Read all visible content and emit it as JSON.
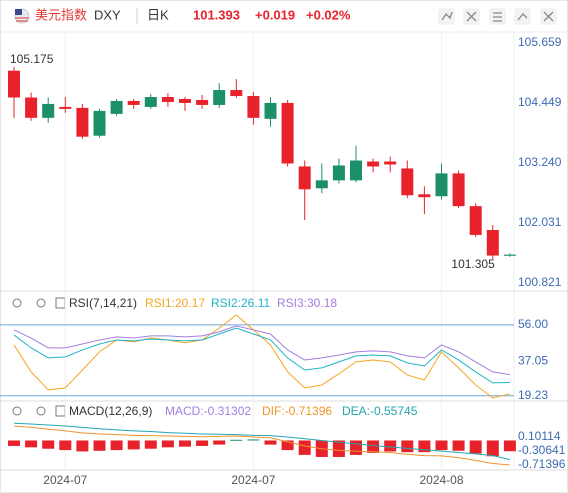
{
  "header": {
    "name": "美元指数",
    "symbol": "DXY",
    "period": "日K",
    "change": "+0.019",
    "change_pct": "+0.02%"
  },
  "chart_data": [
    {
      "type": "candlestick",
      "categories": [
        null,
        null,
        null,
        "2024-07",
        null,
        null,
        null,
        null,
        null,
        null,
        null,
        null,
        null,
        null,
        "2024-07",
        null,
        null,
        null,
        null,
        null,
        null,
        null,
        null,
        null,
        null,
        "2024-08",
        null,
        null,
        null,
        null
      ],
      "open": [
        105.1,
        104.56,
        104.15,
        104.37,
        104.35,
        103.79,
        104.23,
        104.49,
        104.37,
        104.57,
        104.53,
        104.51,
        104.41,
        104.71,
        104.59,
        104.13,
        104.45,
        103.17,
        102.73,
        102.89,
        102.89,
        103.27,
        103.27,
        103.13,
        102.61,
        102.57,
        103.03,
        102.37,
        101.89,
        101.37
      ],
      "high": [
        105.175,
        104.66,
        104.56,
        104.57,
        104.43,
        104.33,
        104.53,
        104.53,
        104.63,
        104.65,
        104.57,
        104.61,
        104.85,
        104.93,
        104.67,
        104.57,
        104.51,
        103.29,
        103.23,
        103.33,
        103.59,
        103.33,
        103.37,
        103.29,
        102.77,
        103.23,
        103.09,
        102.43,
        101.99,
        101.42
      ],
      "low": [
        104.15,
        104.09,
        104.05,
        104.25,
        103.73,
        103.75,
        104.19,
        104.33,
        104.33,
        104.37,
        104.29,
        104.33,
        104.35,
        104.55,
        104.01,
        103.97,
        103.17,
        102.09,
        102.63,
        102.83,
        102.85,
        103.05,
        103.05,
        102.53,
        102.21,
        102.51,
        102.33,
        101.75,
        101.305,
        101.35
      ],
      "close": [
        104.56,
        104.15,
        104.43,
        104.33,
        103.77,
        104.29,
        104.49,
        104.41,
        104.57,
        104.47,
        104.45,
        104.41,
        104.71,
        104.59,
        104.15,
        104.45,
        103.23,
        102.71,
        102.89,
        103.19,
        103.29,
        103.17,
        103.21,
        102.59,
        102.55,
        103.03,
        102.37,
        101.79,
        101.374,
        101.393
      ],
      "up_color": "#1a8f68",
      "down_color": "#e8222b",
      "ylim": [
        100.68,
        105.86
      ],
      "yticks": [
        105.659,
        104.449,
        {
          "value": 103.24,
          "label": "103.240"
        },
        102.031,
        100.821
      ]
    },
    {
      "type": "line",
      "title": "RSI(7,14,21)",
      "series": [
        {
          "name": "RSI1:20.17",
          "color": "#f5a623",
          "values": [
            45.6,
            31.6,
            22.3,
            23.3,
            32.6,
            42,
            48.2,
            47.2,
            49.2,
            48.2,
            46.7,
            48.2,
            54.4,
            61.2,
            53.4,
            45.6,
            31.6,
            23.3,
            24.8,
            30.6,
            36.8,
            37.8,
            36.8,
            30,
            27.4,
            42,
            33.7,
            24.8,
            18.1,
            20.17
          ]
        },
        {
          "name": "RSI2:26.11",
          "color": "#1fb5c9",
          "values": [
            50.8,
            44.1,
            38.9,
            39.4,
            43,
            46.1,
            48.2,
            47.7,
            48.7,
            48.2,
            47.7,
            48.2,
            51.3,
            54.4,
            51.3,
            48.2,
            38.9,
            32.6,
            33.7,
            36.8,
            39.9,
            40.4,
            39.9,
            36.3,
            34.7,
            43,
            37.8,
            31.6,
            25.9,
            26.11
          ]
        },
        {
          "name": "RSI3:30.18",
          "color": "#a57ee0",
          "values": [
            53.4,
            49.2,
            44.1,
            44.1,
            46.1,
            48.2,
            49.8,
            49.2,
            50.3,
            50.3,
            49.8,
            50.3,
            52.4,
            55.5,
            53.4,
            51.3,
            43,
            37.8,
            38.9,
            40.4,
            42,
            42.5,
            42,
            39.9,
            38.9,
            45.6,
            42,
            36.8,
            31.6,
            30.18
          ]
        }
      ],
      "ylim": [
        17,
        62.2
      ],
      "yticks": [
        {
          "value": 56,
          "label": "56.00"
        },
        37.05,
        19.23
      ]
    },
    {
      "type": "macd",
      "title": "MACD(12,26,9)",
      "bars": {
        "name": "MACD:-0.31302",
        "color": "#a57ee0",
        "up_color": "#1a8f68",
        "down_color": "#e8222b",
        "values": [
          -0.16,
          -0.2,
          -0.24,
          -0.28,
          -0.32,
          -0.3,
          -0.28,
          -0.26,
          -0.24,
          -0.2,
          -0.18,
          -0.16,
          -0.12,
          0.02,
          0.03,
          -0.12,
          -0.28,
          -0.42,
          -0.48,
          -0.48,
          -0.42,
          -0.36,
          -0.32,
          -0.34,
          -0.34,
          -0.28,
          -0.3,
          -0.38,
          -0.46,
          -0.31302
        ]
      },
      "series": [
        {
          "name": "DIF:-0.71396",
          "color": "#f0932b",
          "values": [
            0.42,
            0.38,
            0.33,
            0.28,
            0.22,
            0.19,
            0.17,
            0.15,
            0.14,
            0.13,
            0.12,
            0.11,
            0.12,
            0.13,
            0.1,
            0.08,
            -0.04,
            -0.16,
            -0.24,
            -0.29,
            -0.31,
            -0.33,
            -0.35,
            -0.4,
            -0.44,
            -0.45,
            -0.5,
            -0.58,
            -0.67,
            -0.71396
          ]
        },
        {
          "name": "DEA:-0.55745",
          "color": "#22a6b3",
          "values": [
            0.5,
            0.48,
            0.45,
            0.42,
            0.38,
            0.34,
            0.31,
            0.28,
            0.26,
            0.23,
            0.21,
            0.19,
            0.18,
            0.17,
            0.15,
            0.14,
            0.1,
            0.05,
            0.0,
            -0.05,
            -0.1,
            -0.15,
            -0.19,
            -0.23,
            -0.27,
            -0.31,
            -0.35,
            -0.39,
            -0.44,
            -0.55745
          ]
        }
      ],
      "ylim": [
        -1.005,
        0.654
      ],
      "yticks": [
        0.10114,
        -0.30641,
        -0.71396
      ]
    }
  ]
}
